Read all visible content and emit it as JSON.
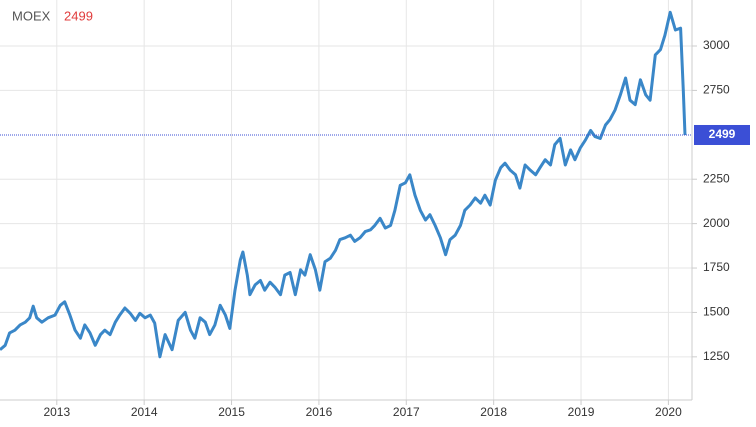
{
  "chart_data": {
    "type": "line",
    "current_value": 2499,
    "x": [
      2012.35,
      2012.41,
      2012.46,
      2012.52,
      2012.58,
      2012.64,
      2012.69,
      2012.73,
      2012.77,
      2012.83,
      2012.9,
      2012.98,
      2013.04,
      2013.09,
      2013.15,
      2013.21,
      2013.27,
      2013.32,
      2013.38,
      2013.44,
      2013.5,
      2013.55,
      2013.61,
      2013.67,
      2013.72,
      2013.78,
      2013.84,
      2013.9,
      2013.95,
      2014.01,
      2014.07,
      2014.12,
      2014.18,
      2014.24,
      2014.32,
      2014.39,
      2014.47,
      2014.53,
      2014.58,
      2014.64,
      2014.7,
      2014.75,
      2014.81,
      2014.87,
      2014.93,
      2014.98,
      2015.04,
      2015.1,
      2015.13,
      2015.18,
      2015.21,
      2015.27,
      2015.33,
      2015.38,
      2015.44,
      2015.5,
      2015.56,
      2015.61,
      2015.67,
      2015.73,
      2015.79,
      2015.84,
      2015.9,
      2015.96,
      2016.01,
      2016.07,
      2016.13,
      2016.19,
      2016.24,
      2016.3,
      2016.36,
      2016.41,
      2016.47,
      2016.53,
      2016.59,
      2016.64,
      2016.7,
      2016.76,
      2016.82,
      2016.87,
      2016.93,
      2016.99,
      2017.04,
      2017.1,
      2017.16,
      2017.22,
      2017.27,
      2017.33,
      2017.39,
      2017.45,
      2017.5,
      2017.56,
      2017.62,
      2017.67,
      2017.73,
      2017.79,
      2017.85,
      2017.9,
      2017.96,
      2018.02,
      2018.08,
      2018.13,
      2018.19,
      2018.25,
      2018.3,
      2018.36,
      2018.42,
      2018.48,
      2018.53,
      2018.59,
      2018.65,
      2018.7,
      2018.76,
      2018.82,
      2018.88,
      2018.93,
      2018.99,
      2019.05,
      2019.11,
      2019.16,
      2019.22,
      2019.28,
      2019.33,
      2019.39,
      2019.45,
      2019.51,
      2019.56,
      2019.62,
      2019.68,
      2019.74,
      2019.79,
      2019.85,
      2019.91,
      2019.96,
      2020.02,
      2020.08,
      2020.14,
      2020.17,
      2020.19
    ],
    "series": [
      {
        "name": "MOEX",
        "color": "#3a87c8",
        "values": [
          1290,
          1315,
          1385,
          1400,
          1430,
          1445,
          1470,
          1535,
          1470,
          1445,
          1470,
          1485,
          1540,
          1560,
          1485,
          1400,
          1355,
          1430,
          1385,
          1315,
          1375,
          1400,
          1375,
          1445,
          1485,
          1525,
          1495,
          1455,
          1495,
          1470,
          1485,
          1440,
          1250,
          1375,
          1290,
          1455,
          1500,
          1400,
          1355,
          1470,
          1445,
          1375,
          1430,
          1540,
          1485,
          1410,
          1625,
          1795,
          1840,
          1710,
          1600,
          1655,
          1680,
          1625,
          1670,
          1640,
          1600,
          1710,
          1725,
          1600,
          1740,
          1710,
          1825,
          1740,
          1625,
          1785,
          1805,
          1850,
          1910,
          1920,
          1935,
          1900,
          1920,
          1955,
          1965,
          1990,
          2030,
          1975,
          1990,
          2075,
          2215,
          2230,
          2275,
          2160,
          2075,
          2020,
          2050,
          1990,
          1920,
          1825,
          1910,
          1935,
          1990,
          2075,
          2105,
          2145,
          2115,
          2160,
          2105,
          2245,
          2315,
          2340,
          2300,
          2275,
          2200,
          2330,
          2300,
          2275,
          2315,
          2360,
          2330,
          2445,
          2480,
          2330,
          2415,
          2360,
          2425,
          2470,
          2525,
          2490,
          2480,
          2555,
          2585,
          2640,
          2725,
          2820,
          2695,
          2670,
          2810,
          2725,
          2695,
          2950,
          2980,
          3060,
          3190,
          3090,
          3100,
          2750,
          2499
        ]
      }
    ],
    "xlim": [
      2012.35,
      2020.27
    ],
    "xticks": [
      2013,
      2014,
      2015,
      2016,
      2017,
      2018,
      2019,
      2020
    ],
    "ylim": [
      1007,
      3259
    ],
    "yticks": [
      1250,
      1500,
      1750,
      2000,
      2250,
      2750,
      3000
    ],
    "grid": true
  }
}
